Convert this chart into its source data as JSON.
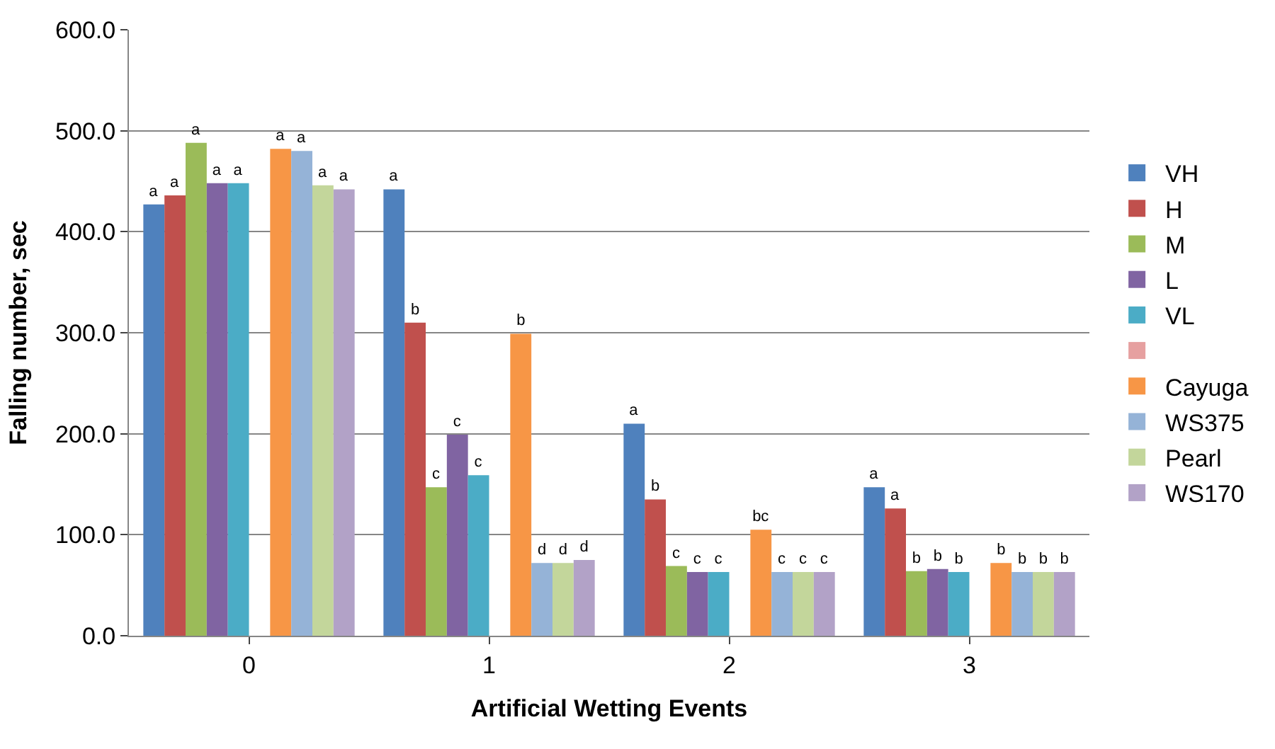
{
  "chart_data": {
    "type": "bar",
    "xlabel": "Artificial Wetting Events",
    "ylabel": "Falling number, sec",
    "categories": [
      "0",
      "1",
      "2",
      "3"
    ],
    "series": [
      {
        "name": "VH",
        "color": "#4f81bd",
        "values": [
          427,
          442,
          210,
          147
        ],
        "value_labels": [
          "a",
          "a",
          "a",
          "a"
        ]
      },
      {
        "name": "H",
        "color": "#c0504d",
        "values": [
          436,
          310,
          135,
          126
        ],
        "value_labels": [
          "a",
          "b",
          "b",
          "a"
        ]
      },
      {
        "name": "M",
        "color": "#9bbb59",
        "values": [
          488,
          147,
          69,
          64
        ],
        "value_labels": [
          "a",
          "c",
          "c",
          "b"
        ]
      },
      {
        "name": "L",
        "color": "#8064a2",
        "values": [
          448,
          199,
          63,
          66
        ],
        "value_labels": [
          "a",
          "c",
          "c",
          "b"
        ]
      },
      {
        "name": "VL",
        "color": "#4bacc6",
        "values": [
          448,
          159,
          63,
          63
        ],
        "value_labels": [
          "a",
          "c",
          "c",
          "b"
        ]
      },
      {
        "color": "#e6a0a0",
        "values": [
          null,
          null,
          null,
          null
        ]
      },
      {
        "name": "Cayuga",
        "color": "#f79646",
        "values": [
          482,
          299,
          105,
          72
        ],
        "value_labels": [
          "a",
          "b",
          "bc",
          "b"
        ]
      },
      {
        "name": "WS375",
        "color": "#95b3d7",
        "values": [
          480,
          72,
          63,
          63
        ],
        "value_labels": [
          "a",
          "d",
          "c",
          "b"
        ]
      },
      {
        "name": "Pearl",
        "color": "#c3d69b",
        "values": [
          446,
          72,
          63,
          63
        ],
        "value_labels": [
          "a",
          "d",
          "c",
          "b"
        ]
      },
      {
        "name": "WS170",
        "color": "#b2a2c7",
        "values": [
          442,
          75,
          63,
          63
        ],
        "value_labels": [
          "a",
          "d",
          "c",
          "b"
        ]
      }
    ],
    "ylim": [
      0,
      600
    ],
    "yticks": [
      {
        "value": 0,
        "label": "0.0"
      },
      {
        "value": 100,
        "label": "100.0"
      },
      {
        "value": 200,
        "label": "200.0"
      },
      {
        "value": 300,
        "label": "300.0"
      },
      {
        "value": 400,
        "label": "400.0"
      },
      {
        "value": 500,
        "label": "500.0"
      },
      {
        "value": 600,
        "label": "600.0"
      }
    ],
    "grid": "y",
    "legend": "right"
  }
}
